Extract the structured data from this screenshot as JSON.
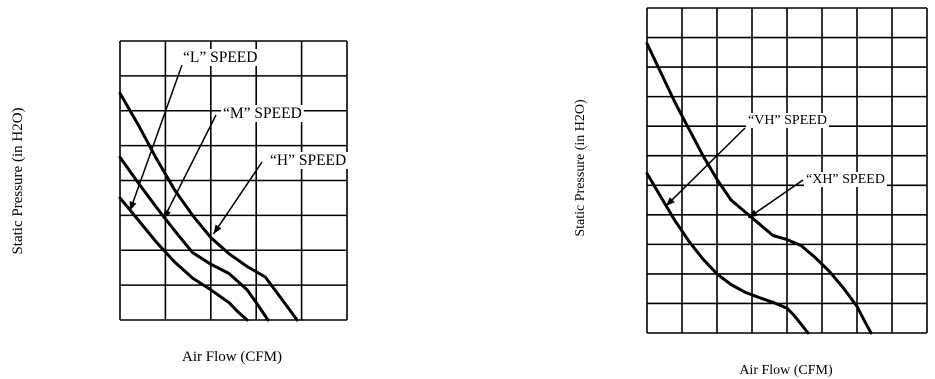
{
  "chart_data": [
    {
      "type": "line",
      "title": "",
      "xlabel": "Air Flow (CFM)",
      "ylabel": "Static Pressure (in H2O)",
      "xlim": [
        0,
        25
      ],
      "ylim": [
        0,
        0.24
      ],
      "x_ticks": [
        "0",
        "5",
        "10",
        "15",
        "20",
        "25"
      ],
      "y_ticks": [
        "0.00",
        "0.03",
        "0.06",
        "0.09",
        "0.12",
        "0.15",
        "0.18",
        "0.21",
        "0.24"
      ],
      "grid": true,
      "series": [
        {
          "name": "“L” SPEED",
          "x": [
            0,
            2,
            4,
            6,
            8,
            10,
            12,
            13,
            14
          ],
          "y": [
            0.105,
            0.086,
            0.067,
            0.05,
            0.036,
            0.026,
            0.015,
            0.007,
            0.0
          ]
        },
        {
          "name": "“M” SPEED",
          "x": [
            0,
            2,
            4,
            6,
            8,
            10,
            12,
            14,
            15,
            16.3
          ],
          "y": [
            0.14,
            0.118,
            0.097,
            0.077,
            0.058,
            0.048,
            0.04,
            0.026,
            0.015,
            0.0
          ]
        },
        {
          "name": "“H” SPEED",
          "x": [
            0,
            2,
            4,
            6,
            8,
            10,
            12,
            14,
            16,
            18,
            19.5
          ],
          "y": [
            0.195,
            0.168,
            0.139,
            0.112,
            0.09,
            0.071,
            0.057,
            0.046,
            0.037,
            0.016,
            0.0
          ]
        }
      ],
      "annotations": [
        {
          "label": "“L” SPEED",
          "series": "“L” SPEED",
          "point": [
            1.1,
            0.094
          ]
        },
        {
          "label": "“M” SPEED",
          "series": "“M” SPEED",
          "point": [
            4.8,
            0.087
          ]
        },
        {
          "label": "“H” SPEED",
          "series": "“H” SPEED",
          "point": [
            10.3,
            0.074
          ]
        }
      ]
    },
    {
      "type": "line",
      "title": "",
      "xlabel": "Air Flow (CFM)",
      "ylabel": "Static Pressure (in H2O)",
      "xlim": [
        0,
        40
      ],
      "ylim": [
        0,
        0.55
      ],
      "x_ticks": [
        "0",
        "5",
        "10",
        "15",
        "20",
        "25",
        "30",
        "35",
        "40"
      ],
      "y_ticks": [
        "0.00",
        "0.05",
        "0.10",
        "0.15",
        "0.20",
        "0.25",
        "0.30",
        "0.35",
        "0.40",
        "0.45",
        "0.50",
        "0.55"
      ],
      "grid": true,
      "series": [
        {
          "name": "“VH” SPEED",
          "x": [
            0,
            2,
            4,
            6,
            8,
            10,
            12,
            14,
            16,
            18,
            20,
            21,
            22,
            23
          ],
          "y": [
            0.27,
            0.23,
            0.19,
            0.155,
            0.125,
            0.1,
            0.082,
            0.069,
            0.06,
            0.052,
            0.042,
            0.03,
            0.015,
            0.0
          ]
        },
        {
          "name": "“XH” SPEED",
          "x": [
            0,
            2,
            4,
            6,
            8,
            10,
            12,
            14,
            16,
            18,
            20,
            22,
            24,
            26,
            28,
            30,
            31,
            32
          ],
          "y": [
            0.49,
            0.44,
            0.39,
            0.345,
            0.3,
            0.26,
            0.225,
            0.205,
            0.185,
            0.165,
            0.158,
            0.148,
            0.128,
            0.105,
            0.077,
            0.045,
            0.022,
            0.0
          ]
        }
      ],
      "annotations": [
        {
          "label": "“VH” SPEED",
          "series": "“VH” SPEED",
          "point": [
            2.7,
            0.215
          ]
        },
        {
          "label": "“XH” SPEED",
          "series": "“XH” SPEED",
          "point": [
            14.5,
            0.195
          ]
        }
      ]
    }
  ]
}
